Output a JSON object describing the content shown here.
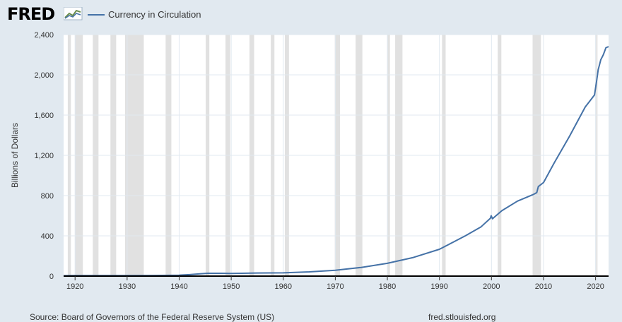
{
  "header": {
    "logo_text": "FRED",
    "logo_icon": "line-chart-icon",
    "series_label": "Currency in Circulation"
  },
  "footer": {
    "source": "Source: Board of Governors of the Federal Reserve System (US)",
    "site": "fred.stlouisfed.org"
  },
  "colors": {
    "background": "#e1e9f0",
    "plot_background": "#ffffff",
    "series": "#4572a7",
    "recession": "#e1e1e1",
    "gridline": "#e1e9f0"
  },
  "chart_data": {
    "type": "line",
    "title": "",
    "xlabel": "",
    "ylabel": "Billions of Dollars",
    "xlim": [
      1917.8,
      2022.5
    ],
    "ylim": [
      0,
      2400
    ],
    "xticks": [
      1920,
      1930,
      1940,
      1950,
      1960,
      1970,
      1980,
      1990,
      2000,
      2010,
      2020
    ],
    "xtick_labels": [
      "1920",
      "1930",
      "1940",
      "1950",
      "1960",
      "1970",
      "1980",
      "1990",
      "2000",
      "2010",
      "2020"
    ],
    "yticks": [
      0,
      400,
      800,
      1200,
      1600,
      2000,
      2400
    ],
    "ytick_labels": [
      "0",
      "400",
      "800",
      "1,200",
      "1,600",
      "2,000",
      "2,400"
    ],
    "grid": true,
    "recessions": [
      [
        1918.6,
        1919.2
      ],
      [
        1920.0,
        1921.5
      ],
      [
        1923.4,
        1924.5
      ],
      [
        1926.8,
        1927.9
      ],
      [
        1929.6,
        1933.2
      ],
      [
        1937.4,
        1938.5
      ],
      [
        1945.1,
        1945.8
      ],
      [
        1948.9,
        1949.8
      ],
      [
        1953.5,
        1954.4
      ],
      [
        1957.6,
        1958.3
      ],
      [
        1960.3,
        1961.1
      ],
      [
        1969.9,
        1970.9
      ],
      [
        1973.9,
        1975.2
      ],
      [
        1980.0,
        1980.5
      ],
      [
        1981.5,
        1982.9
      ],
      [
        1990.5,
        1991.2
      ],
      [
        2001.2,
        2001.9
      ],
      [
        2007.9,
        2009.5
      ],
      [
        2020.1,
        2020.3
      ]
    ],
    "series": [
      {
        "name": "Currency in Circulation",
        "x": [
          1917.8,
          1920,
          1925,
          1930,
          1935,
          1940,
          1942,
          1944,
          1945.5,
          1948,
          1950,
          1955,
          1960,
          1965,
          1970,
          1975,
          1980,
          1985,
          1990,
          1995,
          1998,
          1999.8,
          1999.95,
          2000.2,
          2002,
          2005,
          2008,
          2008.7,
          2009,
          2010,
          2012,
          2015,
          2018,
          2019.8,
          2020.2,
          2020.5,
          2021,
          2021.5,
          2022,
          2022.5
        ],
        "y": [
          4,
          5,
          5,
          5,
          6,
          9,
          15,
          23,
          28,
          28,
          27,
          31,
          32,
          42,
          58,
          86,
          127,
          185,
          267,
          401,
          490,
          575,
          600,
          570,
          650,
          745,
          810,
          830,
          890,
          930,
          1120,
          1390,
          1680,
          1800,
          1940,
          2050,
          2150,
          2200,
          2270,
          2280
        ]
      }
    ]
  }
}
